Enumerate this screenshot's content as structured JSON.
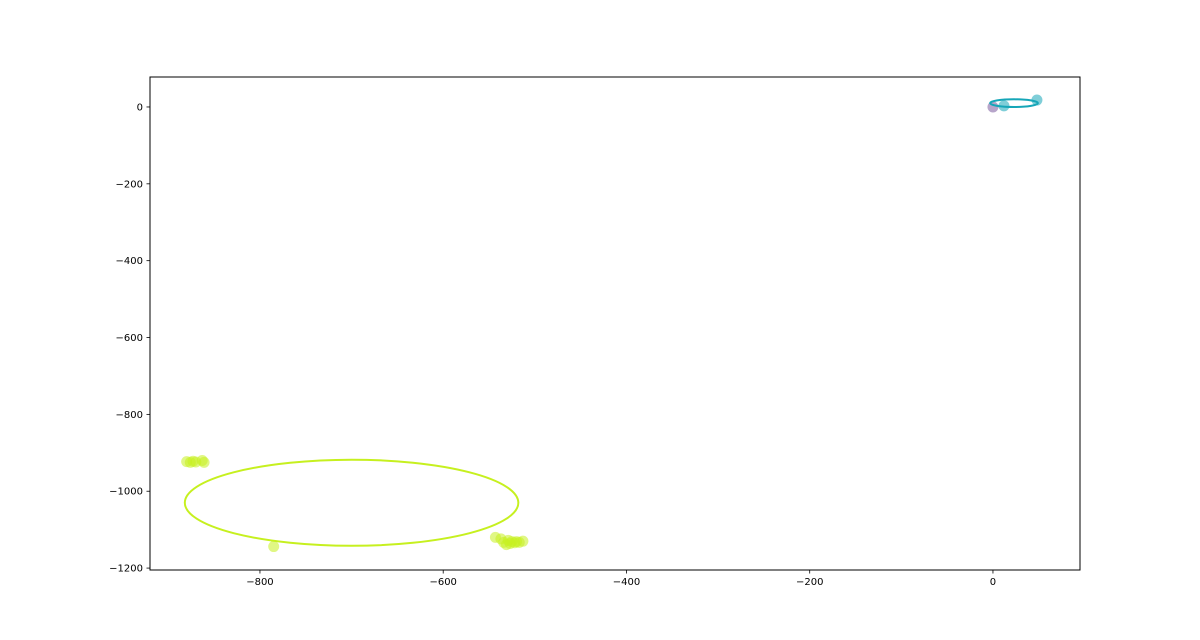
{
  "chart_data": {
    "type": "scatter",
    "title": "",
    "xlabel": "",
    "ylabel": "",
    "xlim": [
      -920,
      95
    ],
    "ylim": [
      -1205,
      78
    ],
    "grid": false,
    "x_ticks": [
      {
        "value": -800,
        "label": "−800"
      },
      {
        "value": -600,
        "label": "−600"
      },
      {
        "value": -400,
        "label": "−400"
      },
      {
        "value": -200,
        "label": "−200"
      },
      {
        "value": 0,
        "label": "0"
      }
    ],
    "y_ticks": [
      {
        "value": 0,
        "label": "0"
      },
      {
        "value": -200,
        "label": "−200"
      },
      {
        "value": -400,
        "label": "−400"
      },
      {
        "value": -600,
        "label": "−600"
      },
      {
        "value": -800,
        "label": "−800"
      },
      {
        "value": -1000,
        "label": "−1000"
      },
      {
        "value": -1200,
        "label": "−1200"
      }
    ],
    "series": [
      {
        "color": "#c6f01f",
        "points": [
          {
            "x": -880,
            "y": -923
          },
          {
            "x": -876,
            "y": -925
          },
          {
            "x": -873,
            "y": -922
          },
          {
            "x": -870,
            "y": -924
          },
          {
            "x": -863,
            "y": -920
          },
          {
            "x": -861,
            "y": -925
          },
          {
            "x": -785,
            "y": -1144
          },
          {
            "x": -543,
            "y": -1120
          },
          {
            "x": -537,
            "y": -1124
          },
          {
            "x": -534,
            "y": -1133
          },
          {
            "x": -531,
            "y": -1139
          },
          {
            "x": -529,
            "y": -1128
          },
          {
            "x": -527,
            "y": -1136
          },
          {
            "x": -525,
            "y": -1131
          },
          {
            "x": -522,
            "y": -1134
          },
          {
            "x": -520,
            "y": -1131
          },
          {
            "x": -517,
            "y": -1133
          },
          {
            "x": -513,
            "y": -1130
          }
        ],
        "ellipse": {
          "cx": -700,
          "cy": -1030,
          "rx": 182,
          "ry": 112
        }
      },
      {
        "color": "#16a6b8",
        "points": [
          {
            "x": 12,
            "y": 3
          },
          {
            "x": 48,
            "y": 18
          }
        ],
        "ellipse": {
          "cx": 23,
          "cy": 10,
          "rx": 26,
          "ry": 10
        }
      },
      {
        "color": "#7b5b9e",
        "points": [
          {
            "x": 0,
            "y": 0
          }
        ]
      }
    ]
  }
}
